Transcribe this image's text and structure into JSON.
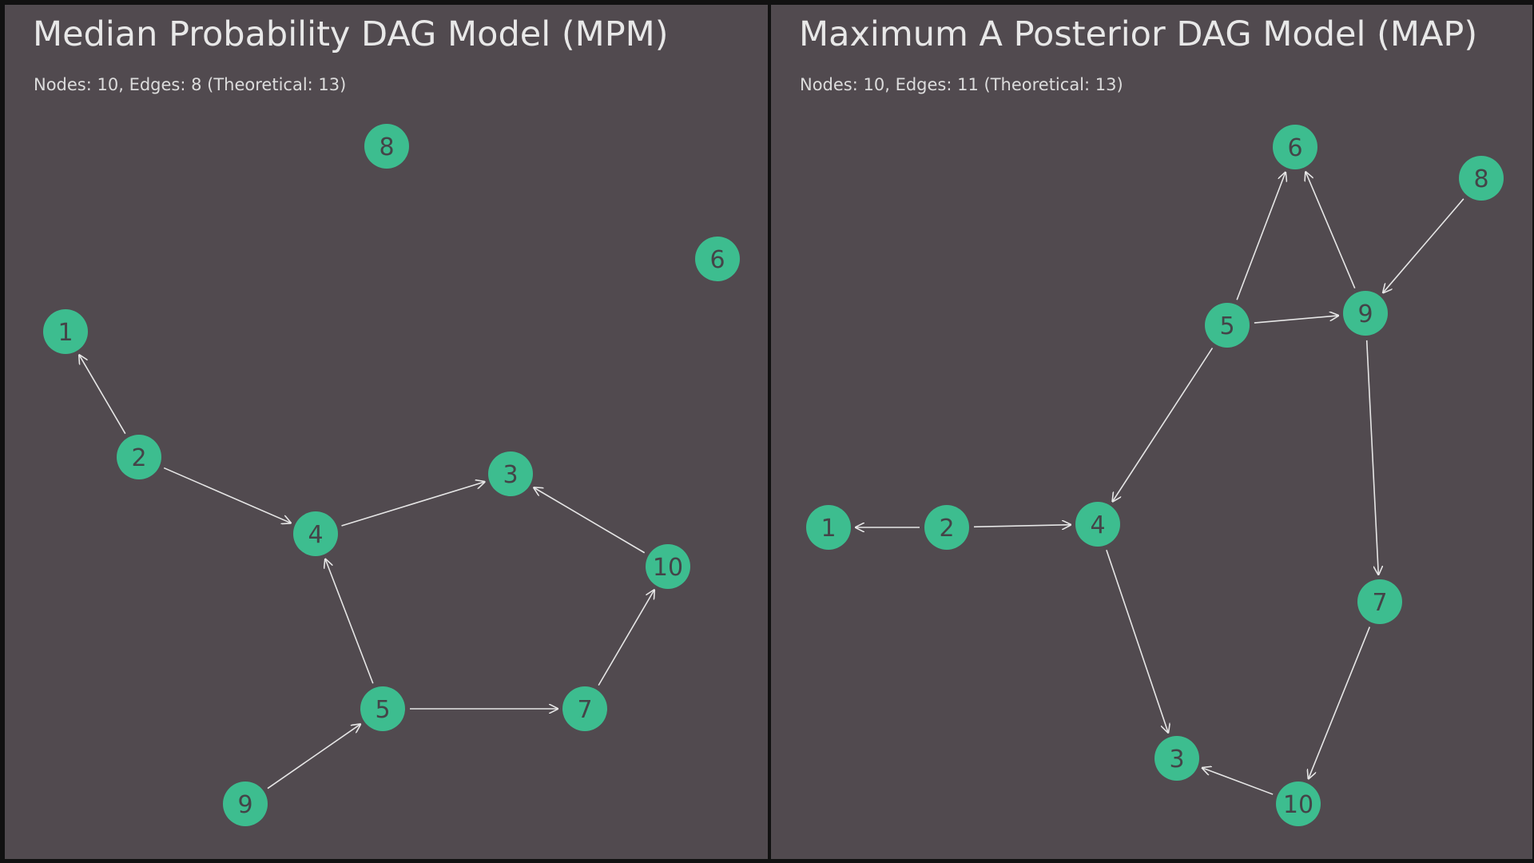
{
  "colors": {
    "background": "#514a4f",
    "node": "#3dbd8f",
    "node_label": "#444448",
    "edge": "#e6e6e6",
    "title": "#e8e8e8"
  },
  "panels": [
    {
      "id": "mpm",
      "title": "Median Probability DAG Model (MPM)",
      "subtitle": "Nodes: 10, Edges: 8 (Theoretical: 13)",
      "nodes": [
        "1",
        "2",
        "3",
        "4",
        "5",
        "6",
        "7",
        "8",
        "9",
        "10"
      ],
      "edges": [
        {
          "from": "2",
          "to": "1"
        },
        {
          "from": "2",
          "to": "4"
        },
        {
          "from": "4",
          "to": "3"
        },
        {
          "from": "10",
          "to": "3"
        },
        {
          "from": "5",
          "to": "4"
        },
        {
          "from": "5",
          "to": "7"
        },
        {
          "from": "7",
          "to": "10"
        },
        {
          "from": "9",
          "to": "5"
        }
      ]
    },
    {
      "id": "map",
      "title": "Maximum A Posterior DAG Model (MAP)",
      "subtitle": "Nodes: 10, Edges: 11 (Theoretical: 13)",
      "nodes": [
        "1",
        "2",
        "3",
        "4",
        "5",
        "6",
        "7",
        "8",
        "9",
        "10"
      ],
      "edges": [
        {
          "from": "2",
          "to": "1"
        },
        {
          "from": "2",
          "to": "4"
        },
        {
          "from": "5",
          "to": "4"
        },
        {
          "from": "4",
          "to": "3"
        },
        {
          "from": "5",
          "to": "6"
        },
        {
          "from": "5",
          "to": "9"
        },
        {
          "from": "9",
          "to": "6"
        },
        {
          "from": "8",
          "to": "9"
        },
        {
          "from": "9",
          "to": "7"
        },
        {
          "from": "7",
          "to": "10"
        },
        {
          "from": "10",
          "to": "3"
        }
      ]
    }
  ]
}
